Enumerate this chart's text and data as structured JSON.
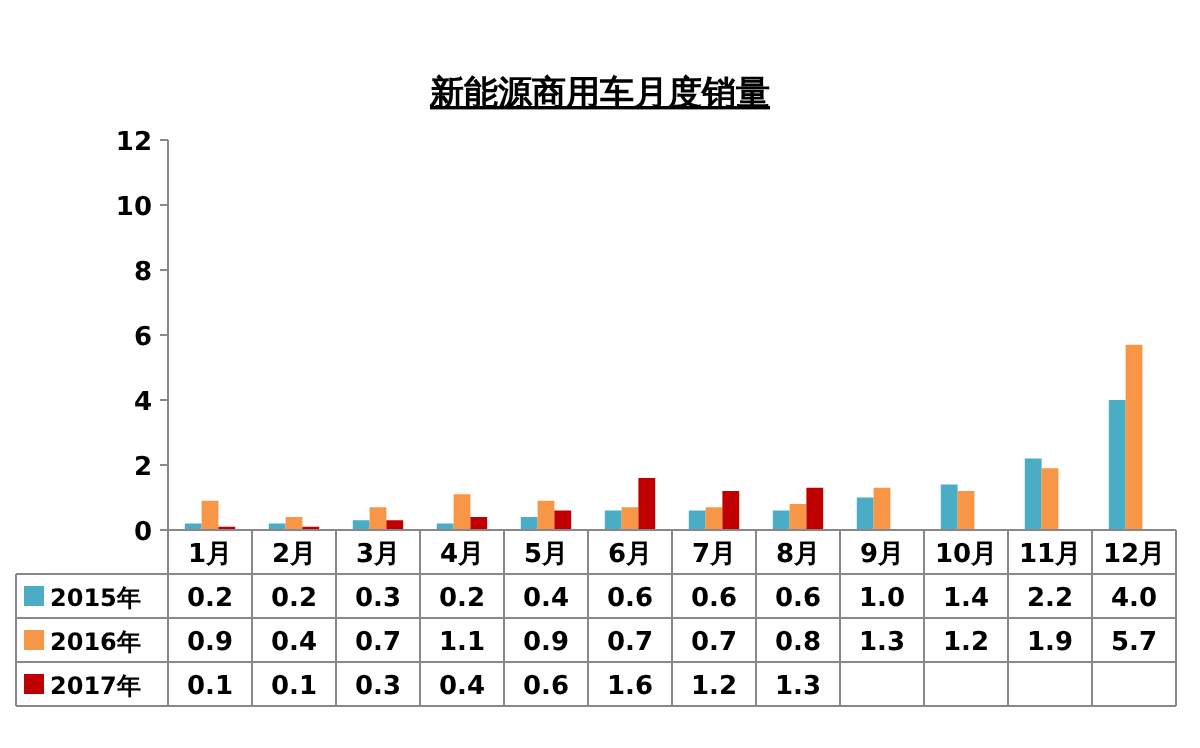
{
  "chart_data": {
    "type": "bar",
    "title": "新能源商用车月度销量",
    "categories": [
      "1月",
      "2月",
      "3月",
      "4月",
      "5月",
      "6月",
      "7月",
      "8月",
      "9月",
      "10月",
      "11月",
      "12月"
    ],
    "series": [
      {
        "name": "2015年",
        "color": "#4bacc6",
        "values": [
          0.2,
          0.2,
          0.3,
          0.2,
          0.4,
          0.6,
          0.6,
          0.6,
          1.0,
          1.4,
          2.2,
          4.0
        ],
        "value_labels": [
          "0.2",
          "0.2",
          "0.3",
          "0.2",
          "0.4",
          "0.6",
          "0.6",
          "0.6",
          "1.0",
          "1.4",
          "2.2",
          "4.0"
        ]
      },
      {
        "name": "2016年",
        "color": "#f79646",
        "values": [
          0.9,
          0.4,
          0.7,
          1.1,
          0.9,
          0.7,
          0.7,
          0.8,
          1.3,
          1.2,
          1.9,
          5.7
        ],
        "value_labels": [
          "0.9",
          "0.4",
          "0.7",
          "1.1",
          "0.9",
          "0.7",
          "0.7",
          "0.8",
          "1.3",
          "1.2",
          "1.9",
          "5.7"
        ]
      },
      {
        "name": "2017年",
        "color": "#c00000",
        "values": [
          0.1,
          0.1,
          0.3,
          0.4,
          0.6,
          1.6,
          1.2,
          1.3,
          null,
          null,
          null,
          null
        ],
        "value_labels": [
          "0.1",
          "0.1",
          "0.3",
          "0.4",
          "0.6",
          "1.6",
          "1.2",
          "1.3",
          null,
          null,
          null,
          null
        ]
      }
    ],
    "ylim": [
      0,
      12
    ],
    "yticks": [
      0,
      2,
      4,
      6,
      8,
      10,
      12
    ],
    "grid": false,
    "legend": "bottom left"
  }
}
